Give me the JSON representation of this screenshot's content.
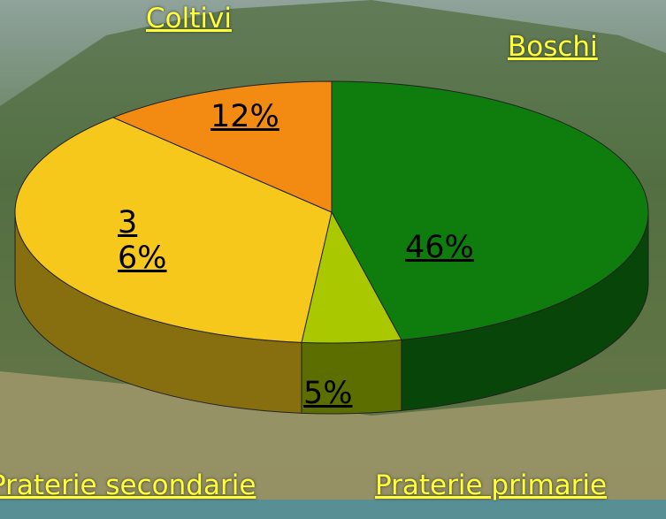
{
  "chart_data": {
    "type": "pie3d",
    "categories": [
      "Boschi",
      "Praterie primarie",
      "Praterie secondarie",
      "Coltivi"
    ],
    "values": [
      46,
      5,
      36,
      12
    ],
    "value_labels": [
      "46%",
      "5%",
      "36%",
      "12%"
    ],
    "colors": [
      "#0e7d0e",
      "#a9c800",
      "#f6c81c",
      "#f38b12"
    ]
  }
}
